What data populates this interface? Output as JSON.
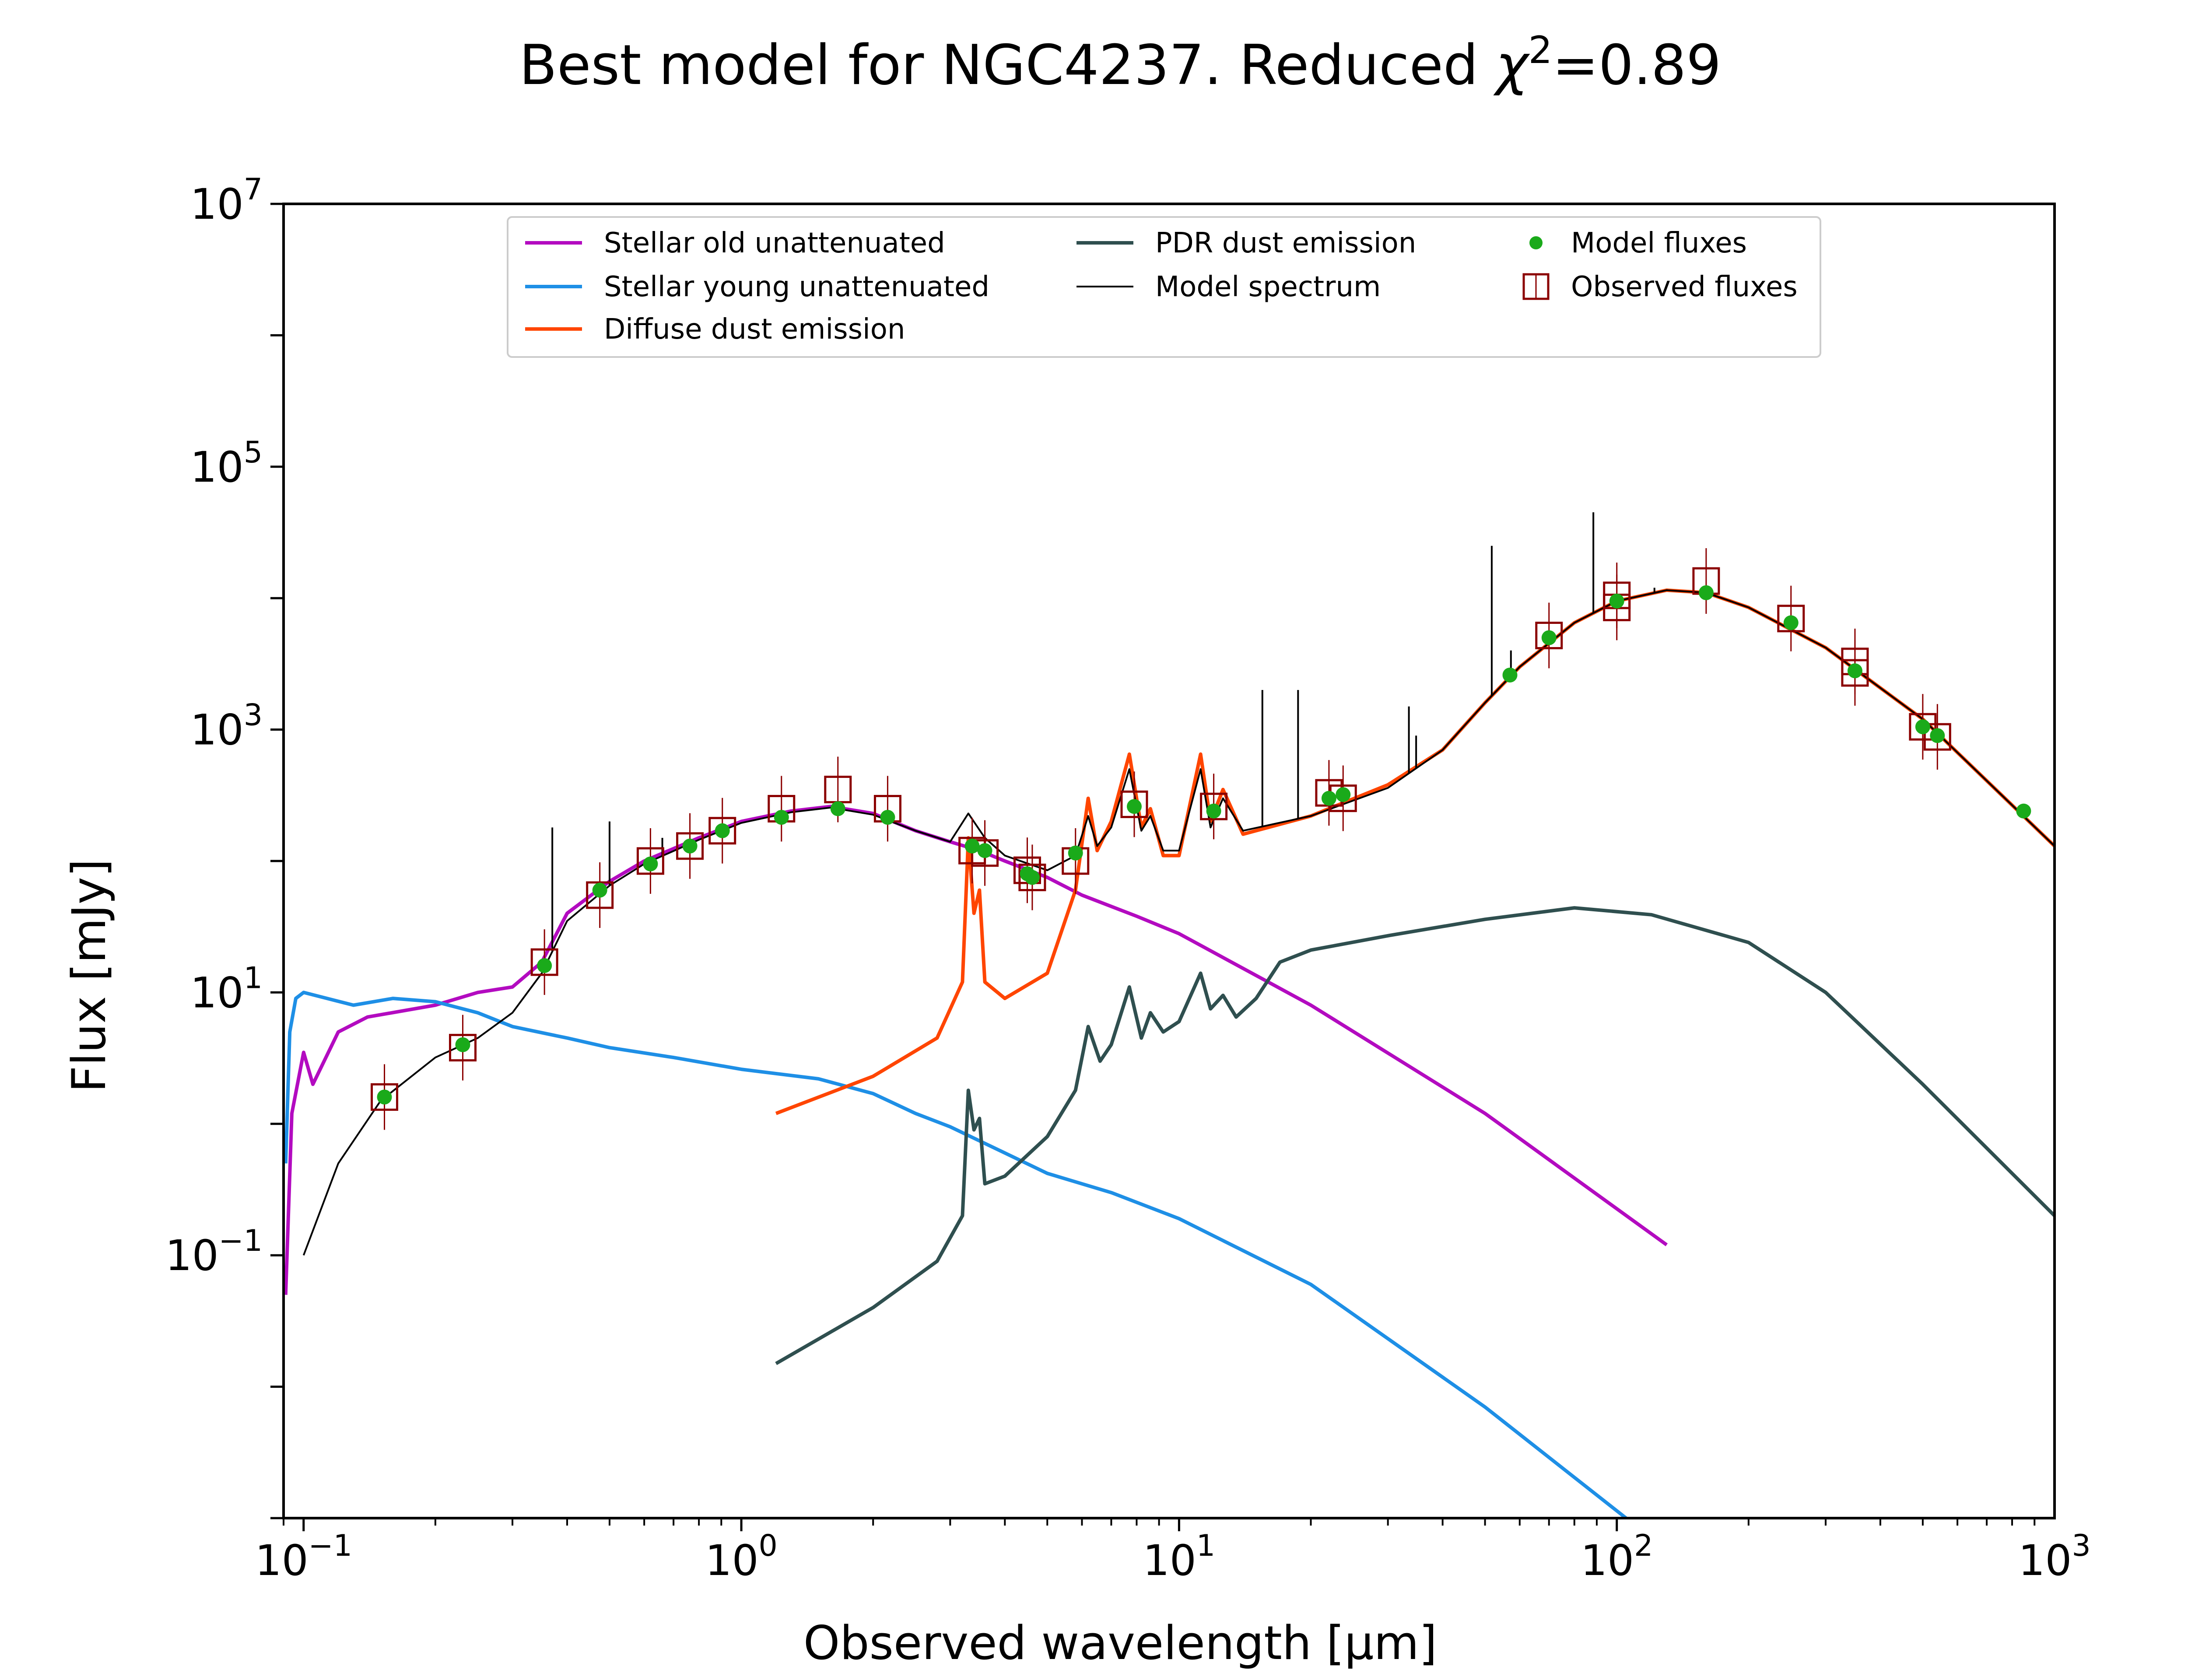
{
  "chart_data": {
    "type": "line",
    "title": "Best model for NGC4237. Reduced χ²=0.89",
    "title_parts": {
      "prefix": "Best model for NGC4237. Reduced ",
      "chi": "χ",
      "sup": "2",
      "suffix": "=0.89"
    },
    "xlabel": "Observed wavelength [μm]",
    "ylabel": "Flux [mJy]",
    "xscale": "log",
    "yscale": "log",
    "xlim": [
      0.09,
      1000
    ],
    "ylim": [
      0.001,
      10000000
    ],
    "grid": false,
    "legend_position": "top-center",
    "x_ticks": [
      {
        "value": 0.1,
        "base": "10",
        "exp": "−1"
      },
      {
        "value": 1,
        "base": "10",
        "exp": "0"
      },
      {
        "value": 10,
        "base": "10",
        "exp": "1"
      },
      {
        "value": 100,
        "base": "10",
        "exp": "2"
      },
      {
        "value": 1000,
        "base": "10",
        "exp": "3"
      }
    ],
    "y_ticks": [
      {
        "value": 0.1,
        "base": "10",
        "exp": "−1"
      },
      {
        "value": 10,
        "base": "10",
        "exp": "1"
      },
      {
        "value": 1000,
        "base": "10",
        "exp": "3"
      },
      {
        "value": 100000,
        "base": "10",
        "exp": "5"
      },
      {
        "value": 10000000,
        "base": "10",
        "exp": "7"
      }
    ],
    "series": [
      {
        "name": "Stellar old unattenuated",
        "color": "#b30bc0",
        "points": [
          [
            0.091,
            0.05
          ],
          [
            0.094,
            1.2
          ],
          [
            0.1,
            3.5
          ],
          [
            0.105,
            2.0
          ],
          [
            0.12,
            5
          ],
          [
            0.14,
            6.5
          ],
          [
            0.2,
            8
          ],
          [
            0.25,
            10
          ],
          [
            0.3,
            11
          ],
          [
            0.35,
            17
          ],
          [
            0.4,
            40
          ],
          [
            0.5,
            70
          ],
          [
            0.6,
            100
          ],
          [
            0.8,
            150
          ],
          [
            1.0,
            200
          ],
          [
            1.3,
            240
          ],
          [
            1.6,
            260
          ],
          [
            2.0,
            230
          ],
          [
            2.5,
            170
          ],
          [
            3.0,
            140
          ],
          [
            3.5,
            120
          ],
          [
            4.0,
            100
          ],
          [
            5.0,
            75
          ],
          [
            6.0,
            55
          ],
          [
            8.0,
            38
          ],
          [
            10.0,
            28
          ],
          [
            20.0,
            8
          ],
          [
            50.0,
            1.2
          ],
          [
            130.0,
            0.12
          ]
        ]
      },
      {
        "name": "Stellar young unattenuated",
        "color": "#1e8fe6",
        "points": [
          [
            0.091,
            0.5
          ],
          [
            0.093,
            5
          ],
          [
            0.096,
            9
          ],
          [
            0.1,
            10
          ],
          [
            0.13,
            8
          ],
          [
            0.16,
            9
          ],
          [
            0.2,
            8.5
          ],
          [
            0.25,
            7
          ],
          [
            0.3,
            5.5
          ],
          [
            0.4,
            4.5
          ],
          [
            0.5,
            3.8
          ],
          [
            0.7,
            3.2
          ],
          [
            1.0,
            2.6
          ],
          [
            1.5,
            2.2
          ],
          [
            2.0,
            1.7
          ],
          [
            2.5,
            1.2
          ],
          [
            3.0,
            0.95
          ],
          [
            4.0,
            0.6
          ],
          [
            5.0,
            0.42
          ],
          [
            7.0,
            0.3
          ],
          [
            10.0,
            0.19
          ],
          [
            20.0,
            0.06
          ],
          [
            50.0,
            0.007
          ],
          [
            105.0,
            0.001
          ]
        ]
      },
      {
        "name": "Diffuse dust emission",
        "color": "#ff4500",
        "points": [
          [
            1.2,
            1.2
          ],
          [
            2.0,
            2.3
          ],
          [
            2.8,
            4.5
          ],
          [
            3.2,
            12
          ],
          [
            3.3,
            150
          ],
          [
            3.4,
            40
          ],
          [
            3.5,
            60
          ],
          [
            3.6,
            12
          ],
          [
            4.0,
            9
          ],
          [
            5.0,
            14
          ],
          [
            5.8,
            60
          ],
          [
            6.2,
            300
          ],
          [
            6.5,
            120
          ],
          [
            7.0,
            200
          ],
          [
            7.7,
            650
          ],
          [
            8.2,
            180
          ],
          [
            8.6,
            250
          ],
          [
            9.2,
            110
          ],
          [
            10.0,
            110
          ],
          [
            11.2,
            650
          ],
          [
            11.8,
            200
          ],
          [
            12.6,
            350
          ],
          [
            14.0,
            160
          ],
          [
            20.0,
            220
          ],
          [
            30.0,
            380
          ],
          [
            40.0,
            700
          ],
          [
            50.0,
            1600
          ],
          [
            60.0,
            3000
          ],
          [
            80.0,
            6500
          ],
          [
            100.0,
            9500
          ],
          [
            130.0,
            11500
          ],
          [
            160.0,
            11000
          ],
          [
            200.0,
            8500
          ],
          [
            300.0,
            4200
          ],
          [
            500.0,
            1200
          ],
          [
            1000.0,
            130
          ]
        ]
      },
      {
        "name": "PDR dust emission",
        "color": "#2f4f4f",
        "points": [
          [
            1.2,
            0.015
          ],
          [
            2.0,
            0.04
          ],
          [
            2.8,
            0.09
          ],
          [
            3.2,
            0.2
          ],
          [
            3.3,
            1.8
          ],
          [
            3.4,
            0.9
          ],
          [
            3.5,
            1.1
          ],
          [
            3.6,
            0.35
          ],
          [
            4.0,
            0.4
          ],
          [
            5.0,
            0.8
          ],
          [
            5.8,
            1.8
          ],
          [
            6.2,
            5.5
          ],
          [
            6.6,
            3.0
          ],
          [
            7.0,
            4.0
          ],
          [
            7.7,
            11
          ],
          [
            8.2,
            4.5
          ],
          [
            8.6,
            7.0
          ],
          [
            9.2,
            5.0
          ],
          [
            10.0,
            6.0
          ],
          [
            11.2,
            14
          ],
          [
            11.8,
            7.5
          ],
          [
            12.6,
            9.5
          ],
          [
            13.5,
            6.5
          ],
          [
            15.0,
            9
          ],
          [
            17.0,
            17
          ],
          [
            20.0,
            21
          ],
          [
            30.0,
            27
          ],
          [
            50.0,
            36
          ],
          [
            80.0,
            44
          ],
          [
            120.0,
            39
          ],
          [
            200.0,
            24
          ],
          [
            300.0,
            10
          ],
          [
            500.0,
            2
          ],
          [
            1000.0,
            0.2
          ]
        ]
      },
      {
        "name": "Model spectrum",
        "color": "#000000",
        "points": [
          [
            0.1,
            0.1
          ],
          [
            0.12,
            0.5
          ],
          [
            0.15,
            1.5
          ],
          [
            0.2,
            3.2
          ],
          [
            0.25,
            4.5
          ],
          [
            0.3,
            7
          ],
          [
            0.35,
            14
          ],
          [
            0.4,
            35
          ],
          [
            0.5,
            65
          ],
          [
            0.6,
            95
          ],
          [
            0.8,
            145
          ],
          [
            1.0,
            195
          ],
          [
            1.3,
            235
          ],
          [
            1.6,
            255
          ],
          [
            2.0,
            225
          ],
          [
            2.5,
            170
          ],
          [
            3.0,
            140
          ],
          [
            3.3,
            230
          ],
          [
            3.6,
            150
          ],
          [
            4.0,
            110
          ],
          [
            5.0,
            85
          ],
          [
            5.8,
            110
          ],
          [
            6.2,
            220
          ],
          [
            6.5,
            130
          ],
          [
            7.0,
            180
          ],
          [
            7.7,
            500
          ],
          [
            8.2,
            170
          ],
          [
            8.6,
            220
          ],
          [
            9.2,
            120
          ],
          [
            10.0,
            120
          ],
          [
            11.2,
            500
          ],
          [
            11.8,
            180
          ],
          [
            12.6,
            300
          ],
          [
            14.0,
            170
          ],
          [
            20.0,
            220
          ],
          [
            30.0,
            360
          ],
          [
            40.0,
            700
          ],
          [
            50.0,
            1600
          ],
          [
            60.0,
            3000
          ],
          [
            80.0,
            6500
          ],
          [
            100.0,
            9500
          ],
          [
            130.0,
            11500
          ],
          [
            160.0,
            11000
          ],
          [
            200.0,
            8500
          ],
          [
            300.0,
            4200
          ],
          [
            500.0,
            1200
          ],
          [
            1000.0,
            130
          ]
        ]
      }
    ],
    "model_spectrum_lines": [
      [
        0.37,
        180
      ],
      [
        0.5,
        200
      ],
      [
        0.66,
        150
      ],
      [
        15.5,
        2000
      ],
      [
        18.7,
        2000
      ],
      [
        33.5,
        1500
      ],
      [
        34.8,
        900
      ],
      [
        51.8,
        25000
      ],
      [
        57.3,
        4000
      ],
      [
        88.4,
        45000
      ],
      [
        121.9,
        12000
      ]
    ],
    "model_fluxes": {
      "name": "Model fluxes",
      "color": "#1aaa1a",
      "points": [
        [
          0.153,
          1.6
        ],
        [
          0.231,
          4.0
        ],
        [
          0.355,
          16
        ],
        [
          0.475,
          60
        ],
        [
          0.62,
          95
        ],
        [
          0.763,
          130
        ],
        [
          0.905,
          170
        ],
        [
          1.235,
          215
        ],
        [
          1.662,
          250
        ],
        [
          2.159,
          215
        ],
        [
          3.368,
          130
        ],
        [
          3.6,
          120
        ],
        [
          4.5,
          80
        ],
        [
          4.62,
          75
        ],
        [
          5.8,
          115
        ],
        [
          7.9,
          260
        ],
        [
          12.0,
          240
        ],
        [
          22.0,
          300
        ],
        [
          23.7,
          320
        ],
        [
          57.0,
          2600
        ],
        [
          70.0,
          5000
        ],
        [
          100.0,
          9500
        ],
        [
          160.0,
          11000
        ],
        [
          250.0,
          6500
        ],
        [
          350.0,
          2800
        ],
        [
          500.0,
          1050
        ],
        [
          540.0,
          900
        ],
        [
          850.0,
          240
        ]
      ]
    },
    "observed_fluxes": {
      "name": "Observed fluxes",
      "color": "#8b0000",
      "points": [
        [
          0.153,
          1.6
        ],
        [
          0.231,
          3.8
        ],
        [
          0.355,
          17
        ],
        [
          0.475,
          55
        ],
        [
          0.62,
          100
        ],
        [
          0.763,
          130
        ],
        [
          0.905,
          170
        ],
        [
          1.235,
          250
        ],
        [
          1.662,
          350
        ],
        [
          2.159,
          250
        ],
        [
          3.368,
          120
        ],
        [
          3.6,
          115
        ],
        [
          4.5,
          85
        ],
        [
          4.62,
          75
        ],
        [
          5.8,
          100
        ],
        [
          7.9,
          270
        ],
        [
          12.0,
          260
        ],
        [
          22.0,
          330
        ],
        [
          23.7,
          300
        ],
        [
          70.0,
          5200
        ],
        [
          100.0,
          8500
        ],
        [
          100.0,
          10500
        ],
        [
          160.0,
          13500
        ],
        [
          250.0,
          7000
        ],
        [
          350.0,
          3300
        ],
        [
          350.0,
          2700
        ],
        [
          500.0,
          1050
        ],
        [
          540.0,
          880
        ]
      ]
    }
  }
}
